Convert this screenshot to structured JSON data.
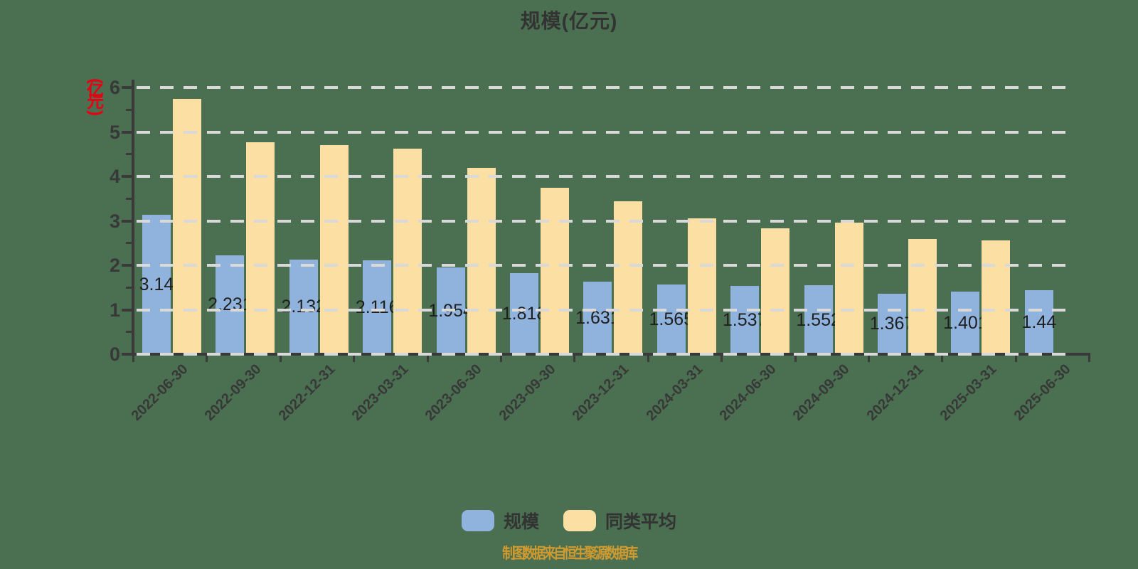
{
  "title": "规模(亿元)",
  "y_axis": {
    "unit_label": "(亿元)",
    "ticks": [
      "0",
      "1",
      "2",
      "3",
      "4",
      "5",
      "6"
    ],
    "max": 6
  },
  "legend": {
    "items": [
      {
        "label": "规模",
        "color": "#90b3dd"
      },
      {
        "label": "同类平均",
        "color": "#fcdfa3"
      }
    ]
  },
  "footer": {
    "source_text": "制图数据来自恒生聚源数据库"
  },
  "colors": {
    "background": "#4a6f51",
    "bar_scale_blue": "#90b3dd",
    "bar_peer_yellow": "#fcdfa3",
    "gridline": "#d9d9d9",
    "axis": "#3a3a3a",
    "text_dark": "#333333",
    "unit_label_red": "#e60012",
    "footer_orange": "#cf9a2f"
  },
  "chart_data": {
    "type": "bar",
    "title": "规模(亿元)",
    "xlabel": "",
    "ylabel": "(亿元)",
    "ylim": [
      0,
      6
    ],
    "grid": "horizontal dashed, drawn above bars",
    "legend_position": "bottom",
    "categories": [
      "2022-06-30",
      "2022-09-30",
      "2022-12-31",
      "2023-03-31",
      "2023-06-30",
      "2023-09-30",
      "2023-12-31",
      "2024-03-31",
      "2024-06-30",
      "2024-09-30",
      "2024-12-31",
      "2025-03-31",
      "2025-06-30"
    ],
    "series": [
      {
        "name": "规模",
        "color": "#90b3dd",
        "values": [
          3.14,
          2.231,
          2.132,
          2.116,
          1.954,
          1.818,
          1.631,
          1.565,
          1.537,
          1.552,
          1.367,
          1.401,
          1.44
        ],
        "labels": [
          "3.14",
          "2.231",
          "2.132",
          "2.116",
          "1.954",
          "1.818",
          "1.631",
          "1.565",
          "1.537",
          "1.552",
          "1.367",
          "1.401",
          "1.44"
        ]
      },
      {
        "name": "同类平均",
        "color": "#fcdfa3",
        "values": [
          5.74,
          4.77,
          4.7,
          4.62,
          4.19,
          3.74,
          3.44,
          3.06,
          2.83,
          2.96,
          2.59,
          2.56,
          null
        ]
      }
    ]
  }
}
